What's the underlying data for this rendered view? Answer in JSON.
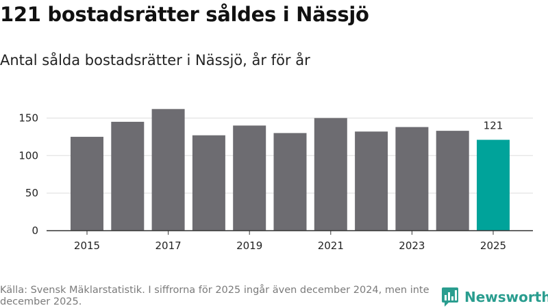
{
  "title": "121 bostadsrätter såldes i Nässjö",
  "subtitle": "Antal sålda bostadsrätter i Nässjö, år för år",
  "source": "Källa: Svensk Mäklarstatistik. I siffrorna för 2025 ingår även december 2024, men inte december 2025.",
  "brand": {
    "name": "Newsworthy",
    "icon": "bar-chart-logo-icon"
  },
  "colors": {
    "bar": "#6d6c71",
    "highlight": "#00a39a",
    "brand": "#2a9d8f",
    "grid": "#dddddd",
    "axis": "#333333"
  },
  "chart_data": {
    "type": "bar",
    "title": "Antal sålda bostadsrätter i Nässjö, år för år",
    "xlabel": "",
    "ylabel": "",
    "categories": [
      "2015",
      "2016",
      "2017",
      "2018",
      "2019",
      "2020",
      "2021",
      "2022",
      "2023",
      "2024",
      "2025"
    ],
    "values": [
      125,
      145,
      162,
      127,
      140,
      130,
      150,
      132,
      138,
      133,
      121
    ],
    "ylim": [
      0,
      165
    ],
    "yticks": [
      0,
      50,
      100,
      150
    ],
    "xtick_labels": [
      "2015",
      "2017",
      "2019",
      "2021",
      "2023",
      "2025"
    ],
    "highlight_index": 10,
    "data_labels": [
      {
        "category": "2025",
        "text": "121"
      }
    ],
    "grid": true
  }
}
